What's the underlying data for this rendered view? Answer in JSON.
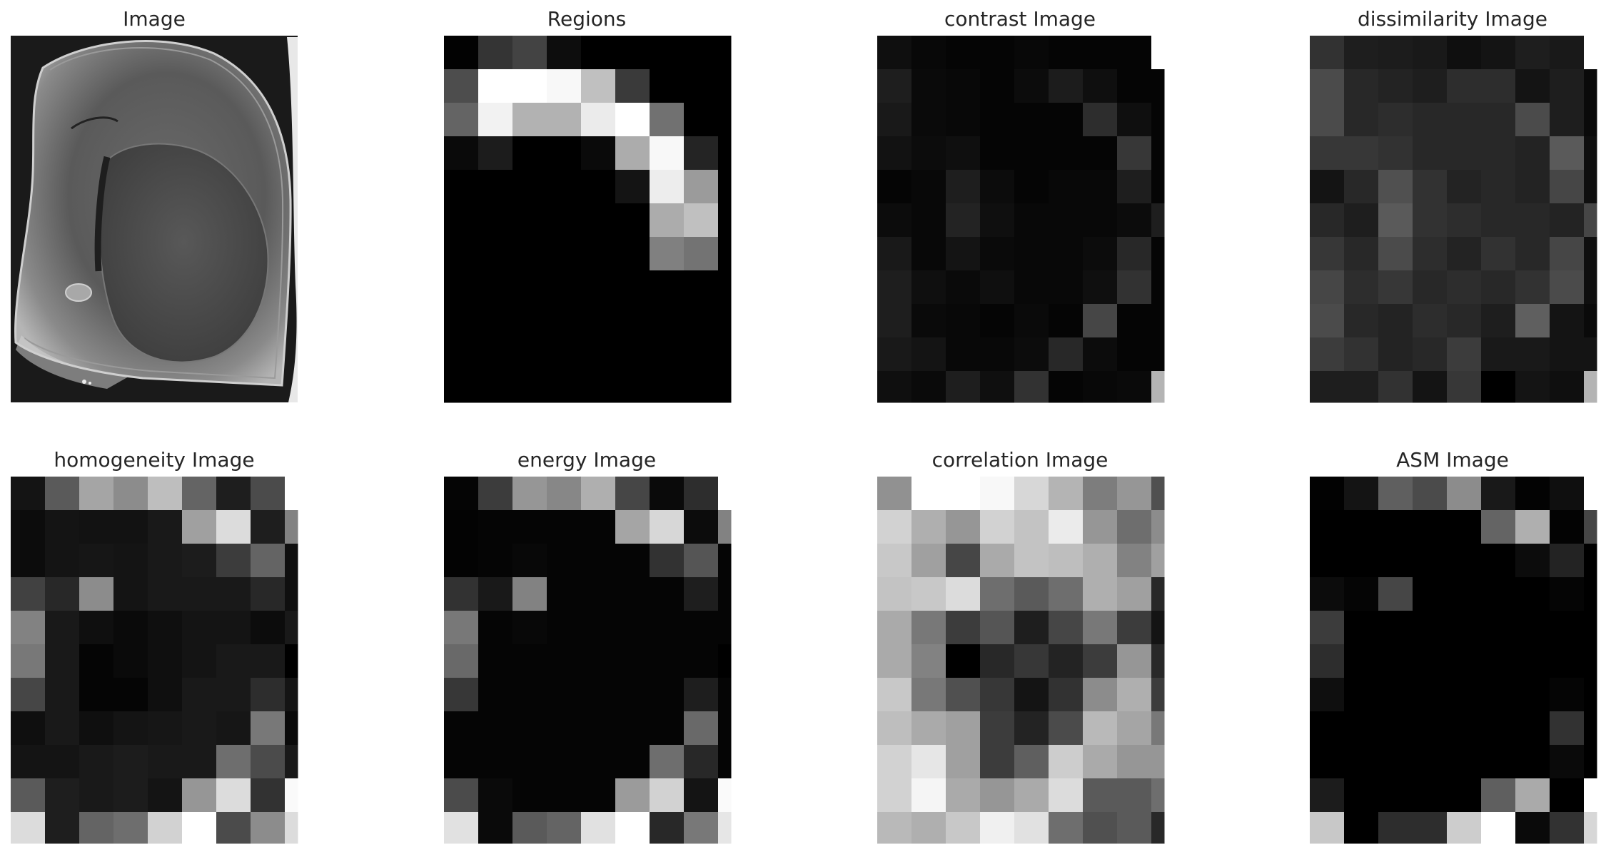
{
  "figure": {
    "background": "#ffffff",
    "title_color": "#262626",
    "colormap": "gray"
  },
  "chart_data": [
    {
      "type": "heatmap",
      "title": "Image",
      "content": "grayscale micrograph of a brain tissue section (photographic, approximated)"
    },
    {
      "type": "heatmap",
      "title": "Regions",
      "columns": 9,
      "rows": 11,
      "values": [
        [
          2,
          52,
          67,
          13,
          0,
          0,
          0,
          0,
          0
        ],
        [
          77,
          255,
          255,
          248,
          192,
          58,
          0,
          0,
          0
        ],
        [
          100,
          242,
          178,
          178,
          235,
          255,
          113,
          0,
          0
        ],
        [
          10,
          28,
          0,
          0,
          10,
          172,
          248,
          36,
          0
        ],
        [
          0,
          0,
          0,
          0,
          0,
          20,
          237,
          155,
          0
        ],
        [
          0,
          0,
          0,
          0,
          0,
          0,
          172,
          192,
          0
        ],
        [
          0,
          0,
          0,
          0,
          0,
          0,
          128,
          115,
          0
        ],
        [
          0,
          0,
          0,
          0,
          0,
          0,
          0,
          0,
          0
        ],
        [
          0,
          0,
          0,
          0,
          0,
          0,
          0,
          0,
          0
        ],
        [
          0,
          0,
          0,
          0,
          0,
          0,
          0,
          0,
          0
        ],
        [
          0,
          0,
          0,
          0,
          0,
          0,
          0,
          0,
          0
        ]
      ]
    },
    {
      "type": "heatmap",
      "title": "contrast Image",
      "columns": 9,
      "rows": 11,
      "values": [
        [
          15,
          8,
          5,
          5,
          8,
          5,
          5,
          5,
          255
        ],
        [
          30,
          10,
          8,
          5,
          12,
          28,
          15,
          5,
          5
        ],
        [
          25,
          10,
          8,
          5,
          5,
          5,
          45,
          15,
          5
        ],
        [
          18,
          12,
          15,
          5,
          5,
          5,
          5,
          55,
          5
        ],
        [
          5,
          8,
          30,
          12,
          5,
          8,
          8,
          30,
          5
        ],
        [
          12,
          8,
          35,
          15,
          8,
          8,
          8,
          12,
          30
        ],
        [
          25,
          8,
          20,
          10,
          8,
          8,
          12,
          40,
          5
        ],
        [
          30,
          15,
          10,
          15,
          8,
          8,
          15,
          50,
          5
        ],
        [
          30,
          10,
          8,
          5,
          10,
          5,
          70,
          5,
          5
        ],
        [
          25,
          20,
          8,
          8,
          12,
          40,
          12,
          5,
          5
        ],
        [
          15,
          10,
          30,
          15,
          50,
          5,
          8,
          10,
          180
        ]
      ]
    },
    {
      "type": "heatmap",
      "title": "dissimilarity Image",
      "columns": 9,
      "rows": 11,
      "values": [
        [
          50,
          30,
          28,
          25,
          15,
          20,
          30,
          25,
          255
        ],
        [
          75,
          40,
          35,
          30,
          45,
          45,
          20,
          30,
          10
        ],
        [
          75,
          40,
          45,
          40,
          40,
          40,
          75,
          30,
          10
        ],
        [
          55,
          55,
          50,
          40,
          40,
          40,
          35,
          90,
          15
        ],
        [
          20,
          40,
          80,
          50,
          35,
          40,
          35,
          70,
          15
        ],
        [
          40,
          30,
          90,
          50,
          45,
          40,
          40,
          35,
          70
        ],
        [
          55,
          40,
          75,
          45,
          35,
          50,
          40,
          70,
          15
        ],
        [
          70,
          45,
          55,
          40,
          45,
          40,
          50,
          75,
          15
        ],
        [
          75,
          40,
          35,
          45,
          40,
          30,
          95,
          20,
          10
        ],
        [
          60,
          50,
          35,
          40,
          60,
          25,
          25,
          20,
          20
        ],
        [
          30,
          30,
          50,
          20,
          55,
          0,
          20,
          15,
          180
        ]
      ]
    },
    {
      "type": "heatmap",
      "title": "homogeneity Image",
      "columns": 9,
      "rows": 11,
      "values": [
        [
          20,
          90,
          165,
          140,
          190,
          100,
          30,
          75,
          255
        ],
        [
          12,
          20,
          18,
          18,
          25,
          160,
          220,
          30,
          130
        ],
        [
          12,
          20,
          22,
          20,
          25,
          28,
          60,
          100,
          15
        ],
        [
          65,
          40,
          140,
          20,
          25,
          25,
          25,
          40,
          15
        ],
        [
          130,
          25,
          15,
          10,
          15,
          20,
          20,
          12,
          25
        ],
        [
          120,
          25,
          5,
          10,
          15,
          20,
          25,
          25,
          0
        ],
        [
          70,
          25,
          5,
          5,
          15,
          25,
          25,
          45,
          20
        ],
        [
          15,
          25,
          15,
          20,
          22,
          25,
          22,
          120,
          10
        ],
        [
          20,
          20,
          25,
          28,
          25,
          25,
          110,
          75,
          25
        ],
        [
          90,
          30,
          25,
          28,
          20,
          150,
          220,
          50,
          250
        ],
        [
          220,
          30,
          100,
          110,
          210,
          255,
          75,
          140,
          220
        ]
      ]
    },
    {
      "type": "heatmap",
      "title": "energy Image",
      "columns": 9,
      "rows": 11,
      "values": [
        [
          5,
          60,
          150,
          135,
          175,
          70,
          10,
          45,
          255
        ],
        [
          3,
          5,
          5,
          5,
          5,
          165,
          215,
          12,
          130
        ],
        [
          3,
          5,
          8,
          5,
          5,
          5,
          50,
          85,
          5
        ],
        [
          50,
          25,
          130,
          5,
          5,
          5,
          5,
          30,
          5
        ],
        [
          120,
          5,
          8,
          5,
          5,
          5,
          5,
          5,
          5
        ],
        [
          105,
          5,
          5,
          5,
          5,
          5,
          5,
          5,
          0
        ],
        [
          55,
          5,
          5,
          5,
          5,
          5,
          5,
          30,
          5
        ],
        [
          5,
          5,
          5,
          5,
          5,
          5,
          5,
          105,
          5
        ],
        [
          5,
          5,
          5,
          5,
          5,
          5,
          110,
          40,
          5
        ],
        [
          75,
          10,
          5,
          5,
          5,
          155,
          210,
          20,
          250
        ],
        [
          225,
          10,
          90,
          100,
          225,
          255,
          40,
          120,
          230
        ]
      ]
    },
    {
      "type": "heatmap",
      "title": "correlation Image",
      "columns": 9,
      "rows": 11,
      "values": [
        [
          145,
          255,
          255,
          248,
          215,
          180,
          125,
          150,
          80
        ],
        [
          210,
          175,
          150,
          210,
          195,
          235,
          150,
          110,
          140
        ],
        [
          200,
          160,
          70,
          170,
          195,
          190,
          175,
          130,
          160
        ],
        [
          195,
          200,
          220,
          110,
          90,
          110,
          175,
          160,
          40
        ],
        [
          170,
          120,
          60,
          85,
          30,
          70,
          120,
          60,
          20
        ],
        [
          170,
          130,
          0,
          40,
          55,
          35,
          60,
          150,
          40
        ],
        [
          200,
          120,
          80,
          55,
          20,
          50,
          140,
          175,
          60
        ],
        [
          190,
          170,
          160,
          60,
          35,
          75,
          185,
          165,
          120
        ],
        [
          210,
          230,
          160,
          60,
          95,
          205,
          170,
          150,
          150
        ],
        [
          210,
          245,
          170,
          150,
          170,
          220,
          90,
          90,
          110
        ],
        [
          185,
          175,
          200,
          240,
          225,
          110,
          80,
          90,
          40
        ]
      ]
    },
    {
      "type": "heatmap",
      "title": "ASM Image",
      "columns": 9,
      "rows": 11,
      "values": [
        [
          2,
          20,
          95,
          75,
          140,
          25,
          3,
          15,
          255
        ],
        [
          0,
          0,
          0,
          0,
          0,
          100,
          175,
          3,
          70
        ],
        [
          0,
          0,
          0,
          0,
          0,
          0,
          12,
          35,
          0
        ],
        [
          12,
          5,
          70,
          0,
          0,
          0,
          0,
          5,
          0
        ],
        [
          60,
          0,
          0,
          0,
          0,
          0,
          0,
          0,
          0
        ],
        [
          45,
          0,
          0,
          0,
          0,
          0,
          0,
          0,
          0
        ],
        [
          15,
          0,
          0,
          0,
          0,
          0,
          0,
          5,
          0
        ],
        [
          0,
          0,
          0,
          0,
          0,
          0,
          0,
          50,
          0
        ],
        [
          0,
          0,
          0,
          0,
          0,
          0,
          0,
          10,
          0
        ],
        [
          28,
          0,
          0,
          0,
          0,
          95,
          170,
          0,
          255
        ],
        [
          200,
          0,
          45,
          45,
          205,
          255,
          10,
          50,
          215
        ]
      ]
    }
  ]
}
